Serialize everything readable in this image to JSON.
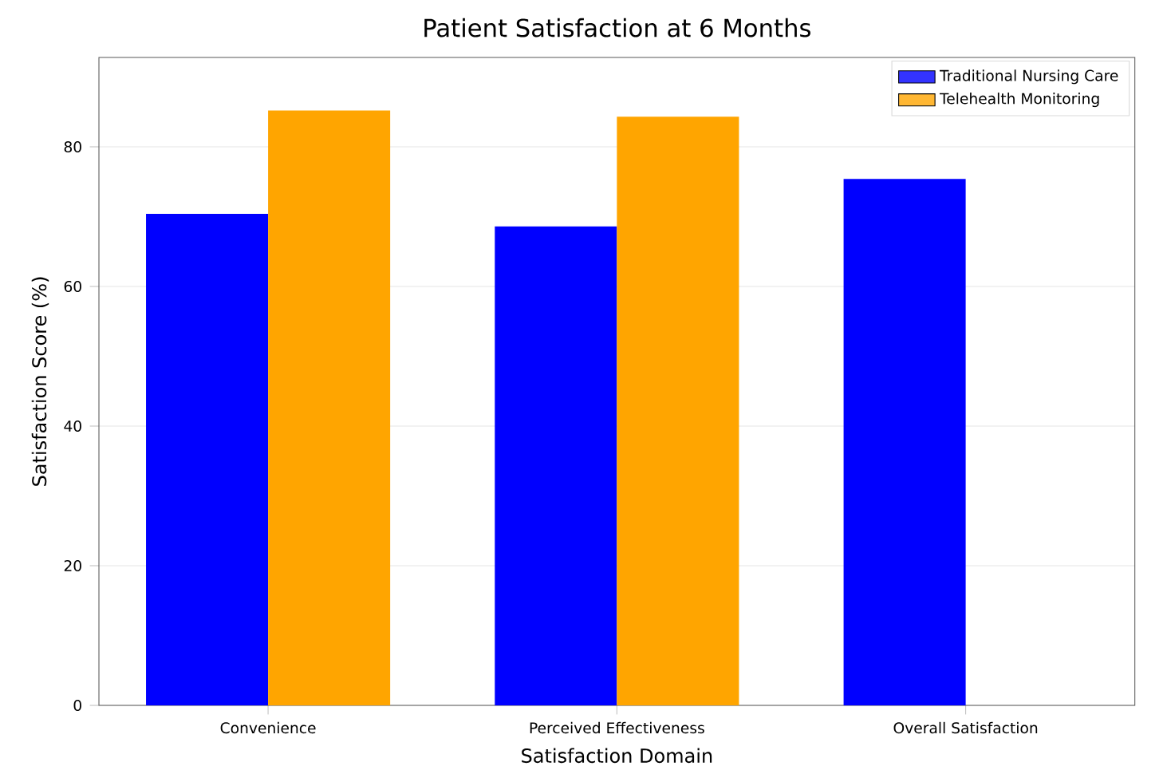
{
  "chart_data": {
    "type": "bar",
    "title": "Patient Satisfaction at 6 Months",
    "xlabel": "Satisfaction Domain",
    "ylabel": "Satisfaction Score (%)",
    "categories": [
      "Convenience",
      "Perceived Effectiveness",
      "Overall Satisfaction"
    ],
    "series": [
      {
        "name": "Traditional Nursing Care",
        "color": "#0000ff",
        "values": [
          70.4,
          68.6,
          75.4
        ]
      },
      {
        "name": "Telehealth Monitoring",
        "color": "#ffa500",
        "values": [
          85.2,
          84.3,
          null
        ]
      }
    ],
    "ylim": [
      0,
      92.8
    ],
    "yticks": [
      0,
      20,
      40,
      60,
      80
    ],
    "grid": "y",
    "legend": "top right"
  }
}
